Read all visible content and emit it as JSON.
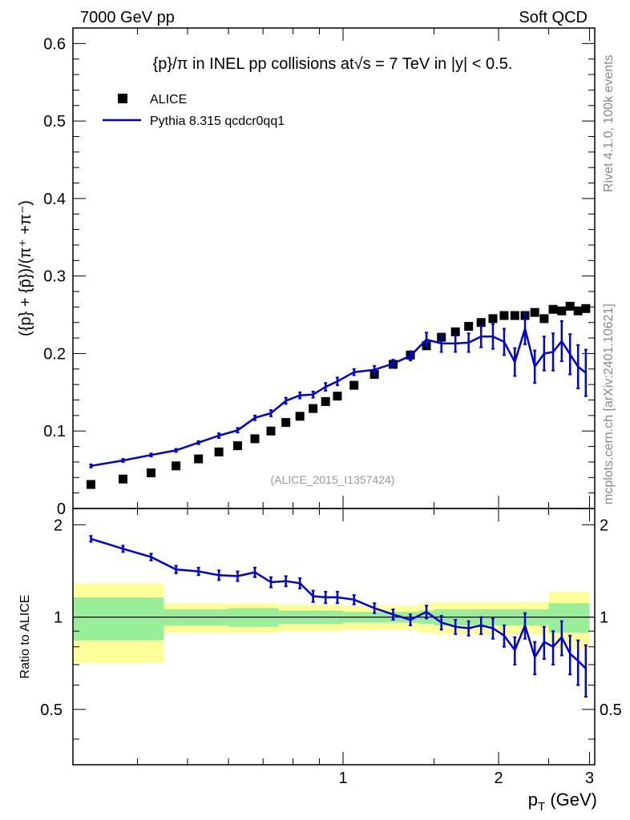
{
  "header": {
    "left": "7000 GeV pp",
    "right": "Soft QCD"
  },
  "side_labels": {
    "rivet": "Rivet 4.1.0,  100k events",
    "mcplots": "mcplots.cern.ch [arXiv:2401.10621]"
  },
  "chart_data": [
    {
      "type": "scatter",
      "title": "{p}/π in INEL pp collisions at√s =  7 TeV in |y| < 0.5.",
      "ylabel": "({p} + {p̄})/(π⁺ +π⁻)",
      "xlabel": "",
      "xlim": [
        0.3,
        3.07
      ],
      "ylim": [
        0,
        0.62
      ],
      "yticks": [
        "0",
        "0.1",
        "0.2",
        "0.3",
        "0.4",
        "0.5",
        "0.6"
      ],
      "analysis_tag": "(ALICE_2015_I1357424)",
      "legend": {
        "placement": "top-left",
        "entries": [
          "ALICE",
          "Pythia 8.315 qcdcr0qq1"
        ]
      },
      "series": [
        {
          "name": "ALICE",
          "style": "markers",
          "color": "#000000",
          "x": [
            0.325,
            0.375,
            0.425,
            0.475,
            0.525,
            0.575,
            0.625,
            0.675,
            0.725,
            0.775,
            0.825,
            0.875,
            0.925,
            0.975,
            1.05,
            1.15,
            1.25,
            1.35,
            1.45,
            1.55,
            1.65,
            1.75,
            1.85,
            1.95,
            2.05,
            2.15,
            2.25,
            2.35,
            2.45,
            2.55,
            2.65,
            2.75,
            2.85,
            2.95
          ],
          "y": [
            0.031,
            0.038,
            0.046,
            0.055,
            0.064,
            0.073,
            0.081,
            0.09,
            0.1,
            0.111,
            0.119,
            0.129,
            0.138,
            0.145,
            0.159,
            0.173,
            0.186,
            0.198,
            0.21,
            0.221,
            0.228,
            0.235,
            0.24,
            0.245,
            0.249,
            0.249,
            0.249,
            0.253,
            0.245,
            0.257,
            0.255,
            0.261,
            0.255,
            0.258
          ]
        },
        {
          "name": "Pythia 8.315 qcdcr0qq1",
          "style": "line",
          "color": "#0000dd",
          "x": [
            0.325,
            0.375,
            0.425,
            0.475,
            0.525,
            0.575,
            0.625,
            0.675,
            0.725,
            0.775,
            0.825,
            0.875,
            0.925,
            0.975,
            1.05,
            1.15,
            1.25,
            1.35,
            1.45,
            1.55,
            1.65,
            1.75,
            1.85,
            1.95,
            2.05,
            2.15,
            2.25,
            2.35,
            2.45,
            2.55,
            2.65,
            2.75,
            2.85,
            2.95
          ],
          "y": [
            0.055,
            0.062,
            0.069,
            0.075,
            0.085,
            0.094,
            0.101,
            0.117,
            0.123,
            0.139,
            0.146,
            0.147,
            0.157,
            0.164,
            0.176,
            0.179,
            0.187,
            0.197,
            0.218,
            0.213,
            0.213,
            0.214,
            0.222,
            0.222,
            0.215,
            0.189,
            0.232,
            0.183,
            0.2,
            0.202,
            0.216,
            0.199,
            0.183,
            0.175
          ],
          "err": [
            0.002,
            0.002,
            0.002,
            0.002,
            0.002,
            0.003,
            0.003,
            0.003,
            0.004,
            0.004,
            0.004,
            0.004,
            0.005,
            0.005,
            0.004,
            0.005,
            0.005,
            0.006,
            0.009,
            0.011,
            0.011,
            0.012,
            0.014,
            0.016,
            0.017,
            0.018,
            0.02,
            0.021,
            0.022,
            0.024,
            0.026,
            0.026,
            0.028,
            0.03
          ]
        }
      ]
    },
    {
      "type": "line",
      "title": "",
      "xlabel": "p_T (GeV)",
      "ylabel": "Ratio to ALICE",
      "xlim": [
        0.3,
        3.07
      ],
      "ylim": [
        0.33,
        2.26
      ],
      "yticks": [
        "0.5",
        "1",
        "2"
      ],
      "xticks": [
        "1",
        "2",
        "3"
      ],
      "reference_line": 1.0,
      "bands": {
        "bin_edges": [
          0.3,
          0.45,
          0.6,
          0.75,
          1.0,
          1.4,
          1.5,
          2.5,
          3.0
        ],
        "inner": [
          0.16,
          0.06,
          0.07,
          0.05,
          0.04,
          0.05,
          0.06,
          0.11
        ],
        "outer": [
          0.29,
          0.11,
          0.11,
          0.1,
          0.09,
          0.11,
          0.12,
          0.21
        ],
        "inner_color": "#99ee99",
        "outer_color": "#ffff99"
      },
      "series": [
        {
          "name": "Pythia 8.315 qcdcr0qq1 / ALICE",
          "color": "#0000dd",
          "x": [
            0.325,
            0.375,
            0.425,
            0.475,
            0.525,
            0.575,
            0.625,
            0.675,
            0.725,
            0.775,
            0.825,
            0.875,
            0.925,
            0.975,
            1.05,
            1.15,
            1.25,
            1.35,
            1.45,
            1.55,
            1.65,
            1.75,
            1.85,
            1.95,
            2.05,
            2.15,
            2.25,
            2.35,
            2.45,
            2.55,
            2.65,
            2.75,
            2.85,
            2.95
          ],
          "y": [
            1.8,
            1.67,
            1.57,
            1.43,
            1.41,
            1.37,
            1.36,
            1.4,
            1.3,
            1.31,
            1.29,
            1.17,
            1.16,
            1.16,
            1.14,
            1.07,
            1.02,
            0.98,
            1.04,
            0.96,
            0.93,
            0.92,
            0.94,
            0.92,
            0.87,
            0.78,
            0.94,
            0.74,
            0.83,
            0.8,
            0.86,
            0.76,
            0.72,
            0.68
          ],
          "err": [
            0.04,
            0.04,
            0.04,
            0.04,
            0.04,
            0.05,
            0.05,
            0.05,
            0.05,
            0.05,
            0.05,
            0.05,
            0.05,
            0.05,
            0.04,
            0.04,
            0.04,
            0.04,
            0.05,
            0.05,
            0.05,
            0.05,
            0.06,
            0.07,
            0.07,
            0.08,
            0.09,
            0.09,
            0.1,
            0.1,
            0.11,
            0.11,
            0.12,
            0.13
          ]
        }
      ]
    }
  ]
}
